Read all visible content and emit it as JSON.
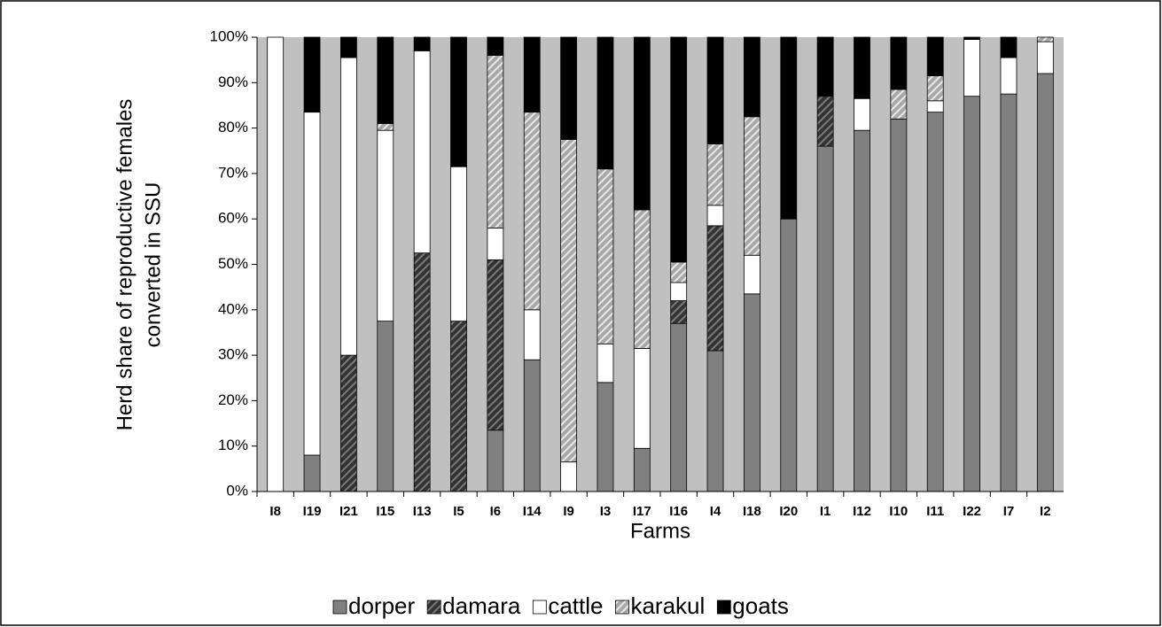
{
  "chart_data": {
    "type": "stacked_bar",
    "ylabel": [
      "Herd share of reproductive females",
      "converted in SSU"
    ],
    "xlabel": "Farms",
    "categories": [
      "I8",
      "I19",
      "I21",
      "I15",
      "I13",
      "I5",
      "I6",
      "I14",
      "I9",
      "I3",
      "I17",
      "I16",
      "I4",
      "I18",
      "I20",
      "I1",
      "I12",
      "I10",
      "I11",
      "I22",
      "I7",
      "I2"
    ],
    "series": [
      {
        "name": "dorper",
        "color": "#808080",
        "hatch": false,
        "values": [
          0,
          8,
          0,
          37.5,
          0,
          0,
          13.5,
          29,
          0,
          24,
          9.5,
          37,
          31,
          43.5,
          60,
          76,
          79.5,
          82,
          83.5,
          87,
          87.5,
          92
        ]
      },
      {
        "name": "damara",
        "color": "#333333",
        "hatch": true,
        "values": [
          0,
          0,
          30,
          0,
          52.5,
          37.5,
          37.5,
          0,
          0,
          0,
          0,
          5,
          27.5,
          0,
          0,
          11,
          0,
          0,
          0,
          0,
          0,
          0
        ]
      },
      {
        "name": "cattle",
        "color": "#ffffff",
        "hatch": false,
        "values": [
          100,
          75.5,
          65.5,
          42,
          44.5,
          34,
          7,
          11,
          6.5,
          8.5,
          22,
          4,
          4.5,
          8.5,
          0,
          0,
          7,
          0,
          2.5,
          12.5,
          8,
          7
        ]
      },
      {
        "name": "karakul",
        "color": "#a8a8a8",
        "hatch": true,
        "values": [
          0,
          0,
          0,
          1.5,
          0,
          0,
          38,
          43.5,
          71,
          38.5,
          30.5,
          4.5,
          13.5,
          30.5,
          0,
          0,
          0,
          6.5,
          5.5,
          0,
          0,
          1
        ]
      },
      {
        "name": "goats",
        "color": "#000000",
        "hatch": false,
        "values": [
          0,
          16.5,
          4.5,
          19,
          3,
          28.5,
          4,
          16.5,
          22.5,
          29,
          38,
          49.5,
          23.5,
          17.5,
          40,
          13,
          13.5,
          11.5,
          8.5,
          0.5,
          4.5,
          0
        ]
      }
    ],
    "ylim": [
      0,
      100
    ],
    "yticks": [
      {
        "value": 0,
        "label": "0%"
      },
      {
        "value": 10,
        "label": "10%"
      },
      {
        "value": 20,
        "label": "20%"
      },
      {
        "value": 30,
        "label": "30%"
      },
      {
        "value": 40,
        "label": "40%"
      },
      {
        "value": 50,
        "label": "50%"
      },
      {
        "value": 60,
        "label": "60%"
      },
      {
        "value": 70,
        "label": "70%"
      },
      {
        "value": 80,
        "label": "80%"
      },
      {
        "value": 90,
        "label": "90%"
      },
      {
        "value": 100,
        "label": "100%"
      }
    ],
    "plot_background": "#c0c0c0",
    "legend": "bottom"
  }
}
